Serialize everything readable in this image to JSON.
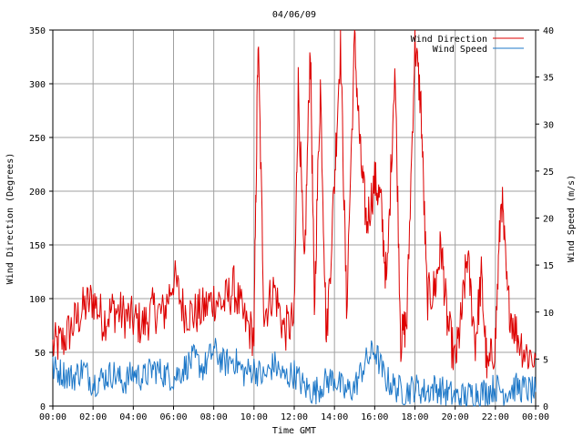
{
  "chart_data": {
    "type": "line",
    "title": "04/06/09",
    "xlabel": "Time GMT",
    "ylabel_left": "Wind Direction (Degrees)",
    "ylabel_right": "Wind Speed (m/s)",
    "x_ticks": [
      "00:00",
      "02:00",
      "04:00",
      "06:00",
      "08:00",
      "10:00",
      "12:00",
      "14:00",
      "16:00",
      "18:00",
      "20:00",
      "22:00",
      "00:00"
    ],
    "xlim_hours": [
      0,
      24
    ],
    "ylim_left": [
      0,
      350
    ],
    "y_ticks_left": [
      "0",
      "50",
      "100",
      "150",
      "200",
      "250",
      "300",
      "350"
    ],
    "ylim_right": [
      0,
      40
    ],
    "y_ticks_right": [
      "0",
      "5",
      "10",
      "15",
      "20",
      "25",
      "30",
      "35",
      "40"
    ],
    "grid": true,
    "legend_position": "top-right",
    "series": [
      {
        "name": "Wind Direction",
        "color": "#dd0000",
        "axis": "left",
        "x_hours": [
          0,
          0.5,
          1,
          1.5,
          2,
          2.5,
          3,
          3.5,
          4,
          4.5,
          5,
          5.5,
          6,
          6.5,
          7,
          7.5,
          8,
          8.5,
          9,
          9.5,
          10,
          10.2,
          10.5,
          11,
          11.5,
          12,
          12.2,
          12.5,
          12.8,
          13,
          13.3,
          13.6,
          14,
          14.3,
          14.6,
          15,
          15.3,
          15.6,
          16,
          16.3,
          16.6,
          17,
          17.3,
          17.6,
          18,
          18.3,
          18.6,
          19,
          19.3,
          19.6,
          20,
          20.3,
          20.6,
          21,
          21.3,
          21.6,
          22,
          22.3,
          22.6,
          23,
          23.5,
          24
        ],
        "values": [
          55,
          60,
          75,
          90,
          100,
          80,
          90,
          85,
          80,
          75,
          90,
          85,
          120,
          90,
          85,
          90,
          100,
          95,
          110,
          80,
          65,
          340,
          85,
          110,
          70,
          80,
          300,
          120,
          340,
          90,
          300,
          60,
          210,
          340,
          90,
          340,
          230,
          170,
          210,
          190,
          110,
          320,
          60,
          80,
          340,
          280,
          100,
          110,
          150,
          80,
          40,
          80,
          140,
          60,
          120,
          30,
          60,
          200,
          100,
          70,
          50,
          45
        ]
      },
      {
        "name": "Wind Speed",
        "color": "#1e78c8",
        "axis": "right",
        "x_hours": [
          0,
          0.5,
          1,
          1.5,
          2,
          2.5,
          3,
          3.5,
          4,
          4.5,
          5,
          5.5,
          6,
          6.5,
          7,
          7.5,
          8,
          8.5,
          9,
          9.5,
          10,
          10.5,
          11,
          11.5,
          12,
          12.5,
          13,
          13.5,
          14,
          14.5,
          15,
          15.5,
          16,
          16.5,
          17,
          17.5,
          18,
          18.5,
          19,
          19.5,
          20,
          20.5,
          21,
          21.5,
          22,
          22.5,
          23,
          23.5,
          24
        ],
        "values": [
          4,
          3.5,
          3,
          4,
          2.5,
          3,
          3.5,
          2.5,
          3.5,
          3,
          4,
          3.5,
          3,
          4,
          5,
          4,
          6,
          4.5,
          5,
          3.5,
          4,
          3,
          4.5,
          3,
          3.5,
          2,
          1.5,
          2.5,
          3,
          1.5,
          2,
          4.5,
          6,
          3,
          2,
          1.5,
          2,
          1.5,
          2,
          1.5,
          1,
          1,
          1.5,
          1.5,
          2,
          1.5,
          2,
          1.8,
          1.5
        ]
      }
    ]
  }
}
